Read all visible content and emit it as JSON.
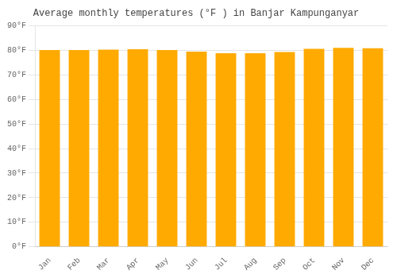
{
  "chart_data": {
    "type": "bar",
    "title": "Average monthly temperatures (°F ) in Banjar Kampunganyar",
    "categories": [
      "Jan",
      "Feb",
      "Mar",
      "Apr",
      "May",
      "Jun",
      "Jul",
      "Aug",
      "Sep",
      "Oct",
      "Nov",
      "Dec"
    ],
    "values": [
      80.1,
      80.1,
      80.3,
      80.4,
      80.1,
      79.5,
      78.8,
      78.8,
      79.3,
      80.6,
      81.0,
      80.8
    ],
    "color": "#FFAA00",
    "ylim": [
      0,
      90
    ],
    "yticks": [
      {
        "value": 0,
        "label": "0°F"
      },
      {
        "value": 10,
        "label": "10°F"
      },
      {
        "value": 20,
        "label": "20°F"
      },
      {
        "value": 30,
        "label": "30°F"
      },
      {
        "value": 40,
        "label": "40°F"
      },
      {
        "value": 50,
        "label": "50°F"
      },
      {
        "value": 60,
        "label": "60°F"
      },
      {
        "value": 70,
        "label": "70°F"
      },
      {
        "value": 80,
        "label": "80°F"
      },
      {
        "value": 90,
        "label": "90°F"
      }
    ],
    "grid": true
  }
}
